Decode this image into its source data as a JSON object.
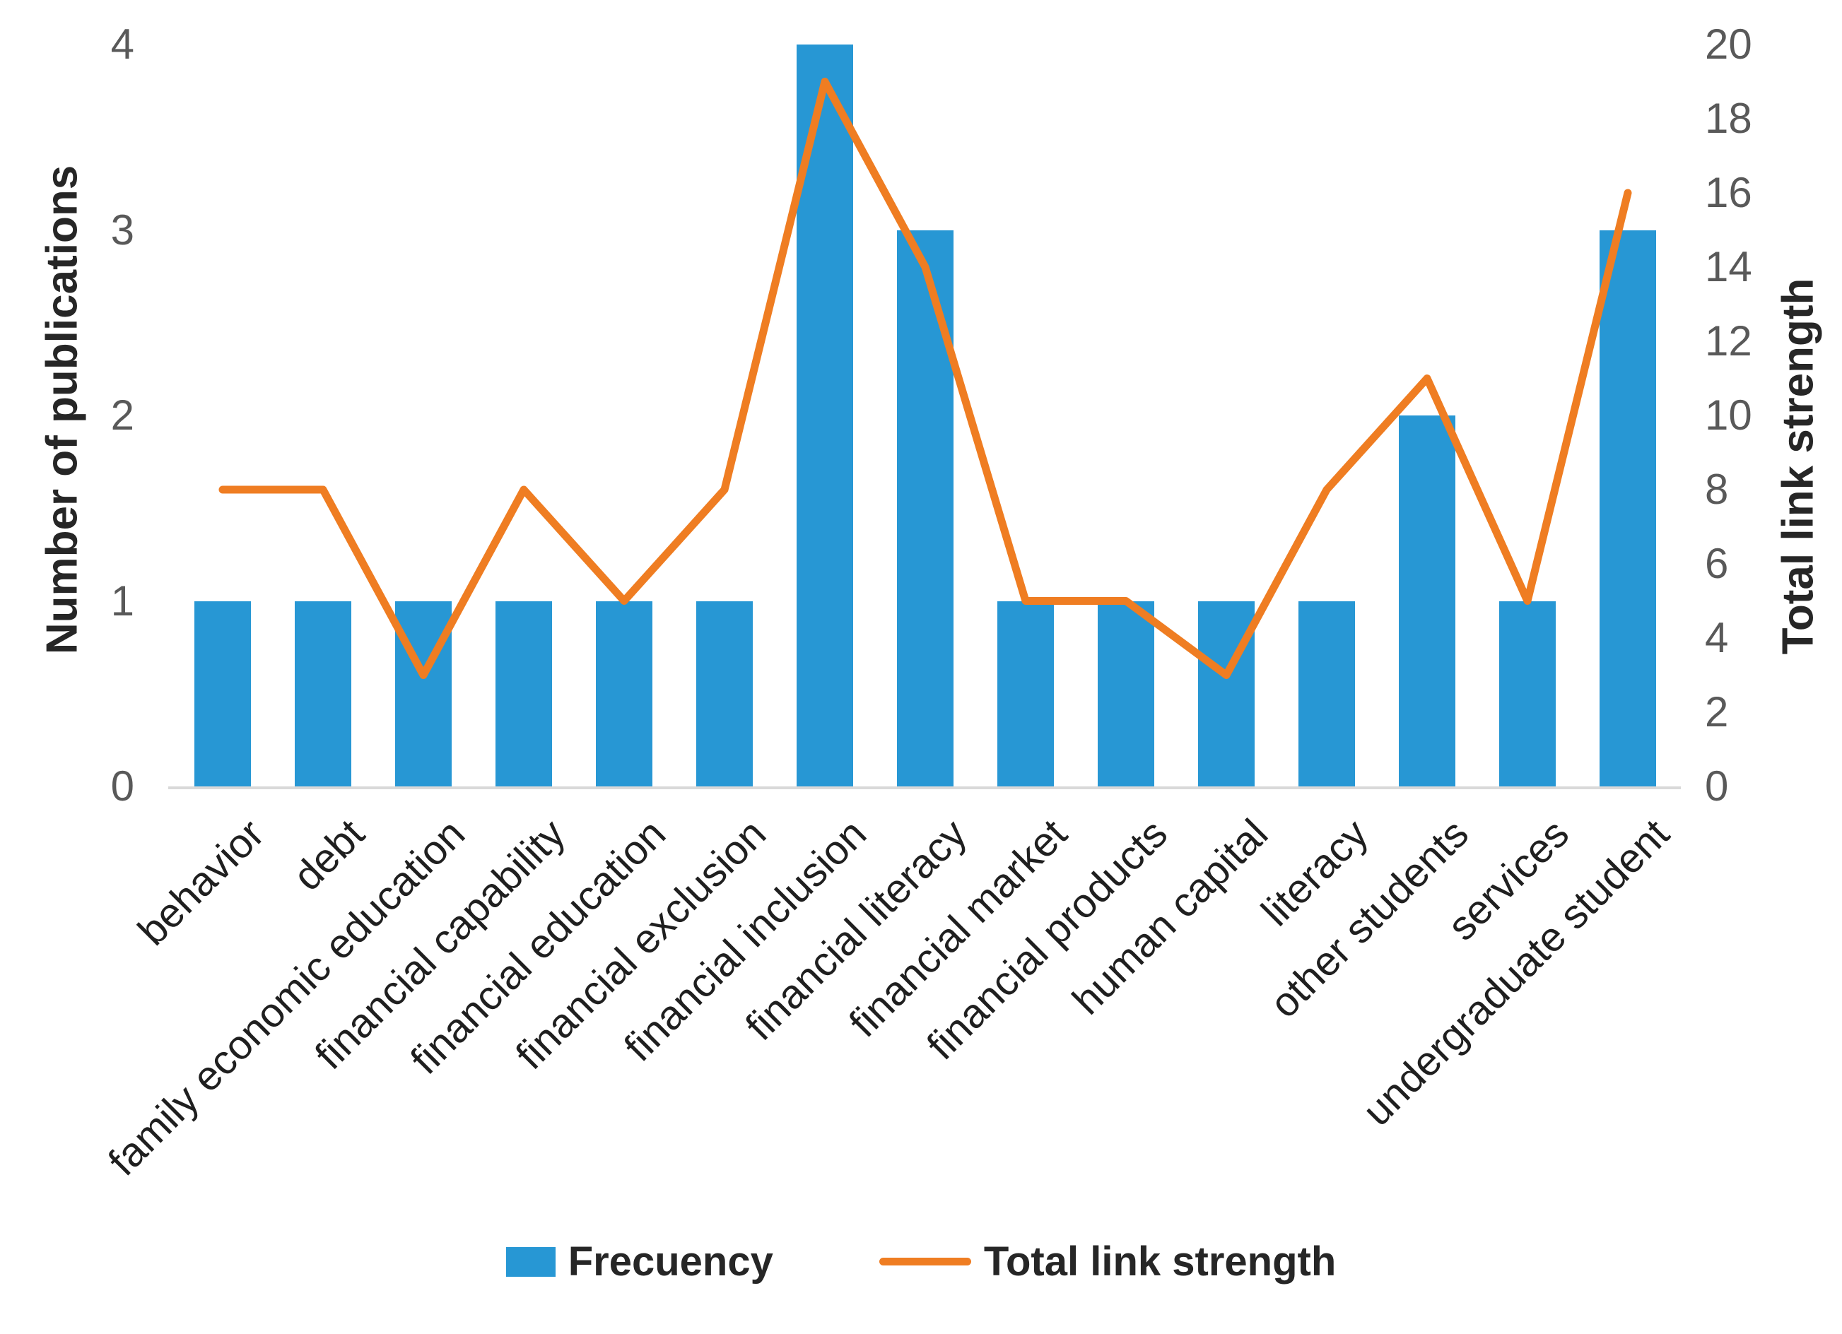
{
  "chart_data": {
    "type": "bar",
    "subtype": "combo-bar-line",
    "categories": [
      "behavior",
      "debt",
      "family economic education",
      "financial capability",
      "financial education",
      "financial exclusion",
      "financial inclusion",
      "financial literacy",
      "financial market",
      "financial products",
      "human capital",
      "literacy",
      "other students",
      "services",
      "undergraduate student"
    ],
    "series": [
      {
        "name": "Frecuency",
        "type": "bar",
        "axis": "left",
        "values": [
          1,
          1,
          1,
          1,
          1,
          1,
          4,
          3,
          1,
          1,
          1,
          1,
          2,
          1,
          3
        ],
        "color": "#2797D4"
      },
      {
        "name": "Total link strength",
        "type": "line",
        "axis": "right",
        "values": [
          8,
          8,
          3,
          8,
          5,
          8,
          19,
          14,
          5,
          5,
          3,
          8,
          11,
          5,
          16
        ],
        "color": "#EF7D22"
      }
    ],
    "left_axis": {
      "label": "Number of publications",
      "ticks": [
        0,
        1,
        2,
        3,
        4
      ],
      "range": [
        0,
        4
      ]
    },
    "right_axis": {
      "label": "Total link strength",
      "ticks": [
        0,
        2,
        4,
        6,
        8,
        10,
        12,
        14,
        16,
        18,
        20
      ],
      "range": [
        0,
        20
      ]
    },
    "grid": false,
    "legend_position": "bottom"
  },
  "legend": {
    "bar_label": "Frecuency",
    "line_label": "Total link strength"
  },
  "colors": {
    "bar": "#2797D4",
    "line": "#EF7D22",
    "tick_text": "#595959",
    "category_text": "#1f1f1f",
    "axis_line": "#D9D9D9"
  }
}
